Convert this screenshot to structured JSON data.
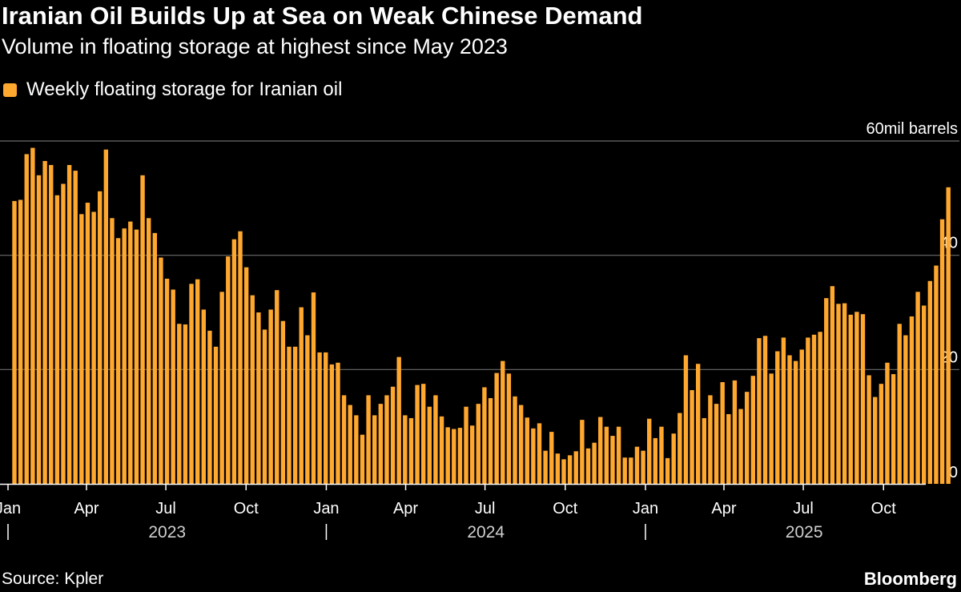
{
  "header": {
    "title": "Iranian Oil Builds Up at Sea on Weak Chinese Demand",
    "subtitle": "Volume in floating storage at highest since May 2023"
  },
  "legend": {
    "label": "Weekly floating storage for Iranian oil"
  },
  "footer": {
    "source": "Source: Kpler",
    "logo": "Bloomberg"
  },
  "colors": {
    "bar": "#ffa82f",
    "background": "#000000",
    "grid": "#6b6b6b",
    "text": "#ffffff"
  },
  "chart_data": {
    "type": "bar",
    "title": "Iranian Oil Builds Up at Sea on Weak Chinese Demand",
    "subtitle": "Volume in floating storage at highest since May 2023",
    "series": [
      {
        "name": "Weekly floating storage for Iranian oil",
        "values": [
          49.5,
          49.7,
          57.7,
          58.8,
          54.0,
          56.5,
          55.8,
          50.5,
          52.5,
          55.8,
          54.8,
          47.2,
          49.2,
          47.6,
          51.2,
          58.5,
          46.5,
          43.0,
          44.7,
          45.9,
          44.5,
          54.0,
          46.5,
          43.9,
          39.6,
          35.9,
          34.0,
          28.0,
          27.9,
          35.0,
          35.8,
          30.5,
          26.8,
          24.0,
          33.6,
          39.8,
          42.8,
          44.2,
          37.9,
          33.0,
          30.0,
          27.0,
          30.5,
          33.9,
          28.5,
          24.0,
          24.0,
          30.9,
          26.0,
          33.5,
          23.0,
          23.0,
          20.9,
          21.2,
          15.5,
          13.8,
          12.0,
          8.6,
          15.5,
          12.0,
          14.0,
          15.5,
          17.0,
          22.2,
          12.0,
          11.5,
          17.3,
          17.5,
          13.5,
          15.5,
          11.8,
          9.9,
          9.6,
          9.8,
          13.5,
          10.2,
          14.0,
          16.9,
          15.0,
          19.4,
          21.5,
          19.3,
          15.3,
          13.8,
          11.6,
          9.7,
          10.6,
          5.8,
          9.1,
          5.3,
          4.3,
          5.0,
          5.7,
          11.2,
          6.2,
          7.2,
          11.7,
          10.0,
          8.4,
          10.0,
          4.6,
          4.6,
          6.5,
          5.8,
          11.4,
          8.0,
          10.0,
          4.5,
          8.8,
          12.4,
          22.5,
          16.4,
          21.0,
          11.5,
          15.5,
          14.0,
          17.8,
          12.2,
          18.1,
          13.1,
          16.1,
          18.9,
          25.5,
          25.9,
          19.3,
          23.2,
          25.6,
          22.5,
          21.5,
          23.5,
          25.6,
          26.1,
          26.6,
          32.5,
          34.6,
          31.5,
          31.6,
          29.6,
          30.1,
          29.7,
          19.0,
          15.2,
          17.5,
          21.2,
          19.2,
          28.0,
          26.0,
          29.3,
          33.6,
          31.2,
          35.5,
          38.2,
          46.3,
          51.9
        ]
      }
    ],
    "xlim": [
      "2023-01-01",
      "2025-12-06"
    ],
    "ylim": [
      0,
      60
    ],
    "yticks": [
      0,
      20,
      40,
      60
    ],
    "ytick_labels": [
      "0",
      "20",
      "40",
      "60mil barrels"
    ],
    "xtick_labels": [
      "Jan",
      "Apr",
      "Jul",
      "Oct",
      "Jan",
      "Apr",
      "Jul",
      "Oct",
      "Jan",
      "Apr",
      "Jul",
      "Oct"
    ],
    "years": [
      "2023",
      "2024",
      "2025"
    ],
    "grid": true,
    "legend_position": "top-left"
  }
}
